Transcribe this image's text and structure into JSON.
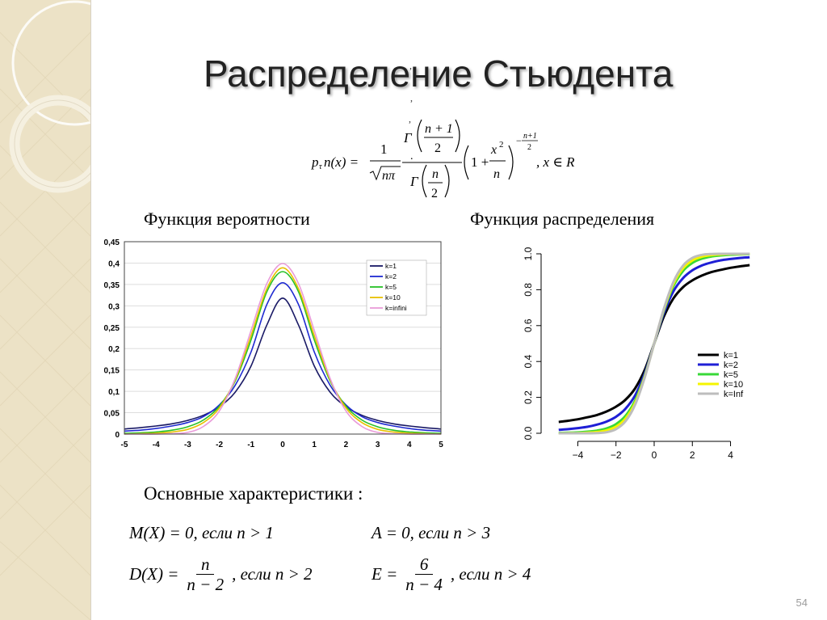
{
  "slide": {
    "title": "Распределение Стьюдента",
    "stray_marks": [
      ",",
      ",",
      ","
    ],
    "page_number": "54"
  },
  "formula": {
    "lhs": "p",
    "lhs_sub": "τ",
    "lhs_tail": "n(x) =",
    "one": "1",
    "sqrt_arg": "nπ",
    "gamma": "Γ",
    "n_plus_1": "n + 1",
    "two": "2",
    "n": "n",
    "dot": ".",
    "paren_one_plus": "1 +",
    "x2": "x",
    "sq": "2",
    "exponent_minus": "−",
    "exp_num": "n+1",
    "exp_den": "2",
    "domain": ", x ∈ R"
  },
  "left_section": {
    "heading": "Функция вероятности"
  },
  "right_section": {
    "heading": "Функция распределения"
  },
  "characteristics": {
    "heading": "Основные характеристики :",
    "mean": {
      "lhs": "M(X) = 0,",
      "cond": "если  n > 1"
    },
    "asym": {
      "lhs": "A = 0,",
      "cond": "если  n > 3"
    },
    "var": {
      "lhs": "D(X) =",
      "num": "n",
      "den": "n − 2",
      "cond": ", если  n > 2"
    },
    "kurt": {
      "lhs": "E =",
      "num": "6",
      "den": "n − 4",
      "cond": ", если  n > 4"
    }
  },
  "colors": {
    "k1": "#1a1a66",
    "k2": "#1f2bd1",
    "k5": "#27c127",
    "k10": "#e8c000",
    "kinf": "#e99bd9",
    "cdf_k1": "#000000",
    "cdf_k2": "#1f1fd6",
    "cdf_k5": "#38d838",
    "cdf_k10": "#f5f500",
    "cdf_kinf": "#bdbdbd"
  },
  "chart_data": [
    {
      "type": "line",
      "title": "",
      "xlabel": "",
      "ylabel": "",
      "xlim": [
        -5,
        5
      ],
      "ylim": [
        0,
        0.45
      ],
      "x_ticks": [
        "-5",
        "-4",
        "-3",
        "-2",
        "-1",
        "0",
        "1",
        "2",
        "3",
        "4",
        "5"
      ],
      "y_ticks": [
        "0",
        "0,05",
        "0,1",
        "0,15",
        "0,2",
        "0,25",
        "0,3",
        "0,35",
        "0,4",
        "0,45"
      ],
      "legend": "top-right",
      "x": [
        -5,
        -4.5,
        -4,
        -3.5,
        -3,
        -2.5,
        -2,
        -1.5,
        -1,
        -0.5,
        0,
        0.5,
        1,
        1.5,
        2,
        2.5,
        3,
        3.5,
        4,
        4.5,
        5
      ],
      "series": [
        {
          "name": "k=1",
          "values": [
            0.012,
            0.015,
            0.019,
            0.024,
            0.032,
            0.044,
            0.064,
            0.098,
            0.159,
            0.255,
            0.318,
            0.255,
            0.159,
            0.098,
            0.064,
            0.044,
            0.032,
            0.024,
            0.019,
            0.015,
            0.012
          ]
        },
        {
          "name": "k=2",
          "values": [
            0.007,
            0.009,
            0.013,
            0.019,
            0.027,
            0.041,
            0.068,
            0.114,
            0.192,
            0.303,
            0.354,
            0.303,
            0.192,
            0.114,
            0.068,
            0.041,
            0.027,
            0.019,
            0.013,
            0.009,
            0.007
          ]
        },
        {
          "name": "k=5",
          "values": [
            0.002,
            0.003,
            0.005,
            0.009,
            0.017,
            0.033,
            0.065,
            0.124,
            0.22,
            0.333,
            0.38,
            0.333,
            0.22,
            0.124,
            0.065,
            0.033,
            0.017,
            0.009,
            0.005,
            0.003,
            0.002
          ]
        },
        {
          "name": "k=10",
          "values": [
            0.0,
            0.001,
            0.002,
            0.005,
            0.011,
            0.027,
            0.061,
            0.127,
            0.23,
            0.34,
            0.389,
            0.34,
            0.23,
            0.127,
            0.061,
            0.027,
            0.011,
            0.005,
            0.002,
            0.001,
            0.0
          ]
        },
        {
          "name": "k=infini",
          "values": [
            0.0,
            0.0,
            0.0,
            0.001,
            0.004,
            0.018,
            0.054,
            0.13,
            0.242,
            0.352,
            0.399,
            0.352,
            0.242,
            0.13,
            0.054,
            0.018,
            0.004,
            0.001,
            0.0,
            0.0,
            0.0
          ]
        }
      ]
    },
    {
      "type": "line",
      "title": "",
      "xlabel": "",
      "ylabel": "",
      "xlim": [
        -5.5,
        5.5
      ],
      "ylim": [
        0,
        1.0
      ],
      "x_ticks": [
        "−4",
        "−2",
        "0",
        "2",
        "4"
      ],
      "y_ticks": [
        "0.0",
        "0.2",
        "0.4",
        "0.6",
        "0.8",
        "1.0"
      ],
      "legend": "bottom-right",
      "x": [
        -5,
        -4.5,
        -4,
        -3.5,
        -3,
        -2.5,
        -2,
        -1.5,
        -1,
        -0.5,
        0,
        0.5,
        1,
        1.5,
        2,
        2.5,
        3,
        3.5,
        4,
        4.5,
        5
      ],
      "series": [
        {
          "name": "k=1",
          "values": [
            0.063,
            0.07,
            0.078,
            0.089,
            0.102,
            0.121,
            0.148,
            0.187,
            0.25,
            0.352,
            0.5,
            0.648,
            0.75,
            0.813,
            0.852,
            0.879,
            0.898,
            0.911,
            0.922,
            0.93,
            0.937
          ]
        },
        {
          "name": "k=2",
          "values": [
            0.019,
            0.023,
            0.029,
            0.036,
            0.048,
            0.065,
            0.092,
            0.137,
            0.211,
            0.333,
            0.5,
            0.667,
            0.789,
            0.863,
            0.908,
            0.935,
            0.952,
            0.964,
            0.971,
            0.977,
            0.981
          ]
        },
        {
          "name": "k=5",
          "values": [
            0.002,
            0.003,
            0.005,
            0.009,
            0.015,
            0.027,
            0.051,
            0.097,
            0.182,
            0.319,
            0.5,
            0.681,
            0.818,
            0.903,
            0.949,
            0.973,
            0.985,
            0.991,
            0.995,
            0.997,
            0.998
          ]
        },
        {
          "name": "k=10",
          "values": [
            0.0,
            0.001,
            0.001,
            0.003,
            0.007,
            0.016,
            0.037,
            0.082,
            0.17,
            0.314,
            0.5,
            0.686,
            0.83,
            0.918,
            0.963,
            0.984,
            0.993,
            0.997,
            0.999,
            0.999,
            1.0
          ]
        },
        {
          "name": "k=Inf",
          "values": [
            0.0,
            0.0,
            0.0,
            0.0,
            0.001,
            0.006,
            0.023,
            0.067,
            0.159,
            0.309,
            0.5,
            0.691,
            0.841,
            0.933,
            0.977,
            0.994,
            0.999,
            1.0,
            1.0,
            1.0,
            1.0
          ]
        }
      ]
    }
  ]
}
